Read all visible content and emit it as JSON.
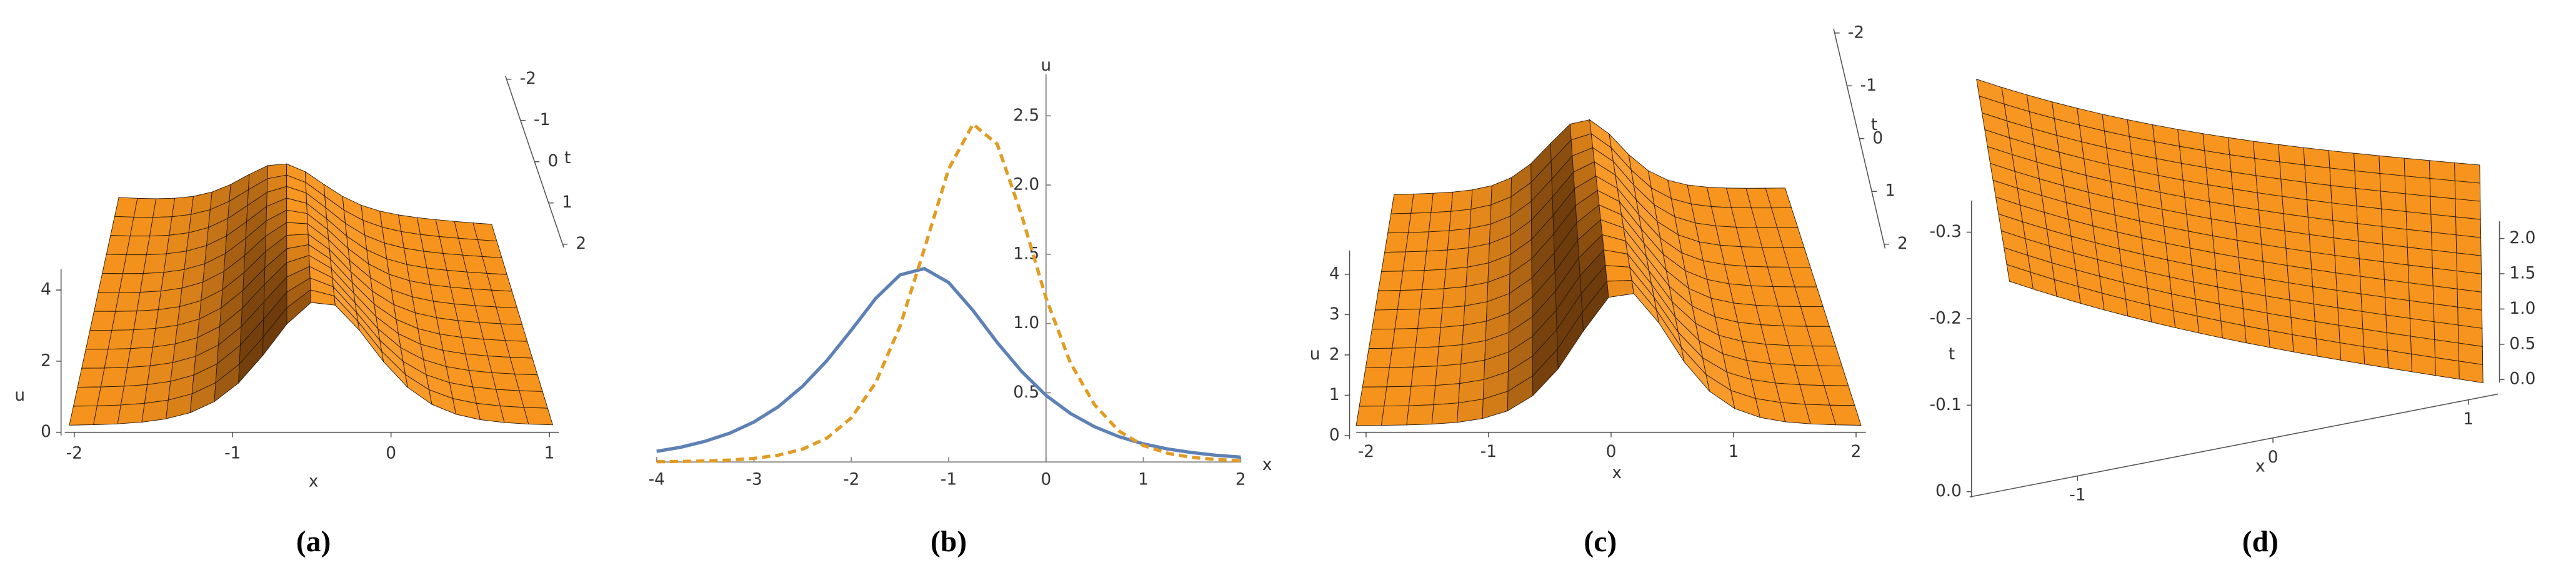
{
  "chart_data": [
    {
      "type": "surface",
      "label": "(a)",
      "xlabel": "x",
      "ylabel": "t",
      "zlabel": "u",
      "xlim": [
        -2,
        1
      ],
      "xticks": [
        -2,
        -1,
        0,
        1
      ],
      "ylim": [
        -2,
        2
      ],
      "yticks": [
        -2,
        -1,
        0,
        1,
        2
      ],
      "zlim": [
        0,
        4.5
      ],
      "zticks": [
        0,
        2,
        4
      ],
      "color": "#f7941d"
    },
    {
      "type": "line",
      "label": "(b)",
      "xlabel": "x",
      "ylabel": "u",
      "xlim": [
        -4,
        2
      ],
      "xticks": [
        -4,
        -3,
        -2,
        -1,
        0,
        1,
        2
      ],
      "ylim": [
        0,
        2.8
      ],
      "yticks": [
        0.5,
        {
          "value": 1,
          "label": "1.0"
        },
        1.5,
        {
          "value": 2,
          "label": "2.0"
        },
        2.5
      ],
      "x": [
        -4,
        -3.75,
        -3.5,
        -3.25,
        -3,
        -2.75,
        -2.5,
        -2.25,
        -2,
        -1.75,
        -1.5,
        -1.25,
        -1,
        -0.75,
        -0.5,
        -0.25,
        0,
        0.25,
        0.5,
        0.75,
        1,
        1.25,
        1.5,
        1.75,
        2
      ],
      "series": [
        {
          "color": "#5e81b5",
          "linestyle": "solid",
          "values": [
            0.077,
            0.107,
            0.15,
            0.208,
            0.289,
            0.399,
            0.547,
            0.733,
            0.952,
            1.181,
            1.351,
            1.397,
            1.296,
            1.094,
            0.862,
            0.654,
            0.481,
            0.351,
            0.254,
            0.183,
            0.131,
            0.094,
            0.068,
            0.048,
            0.035
          ]
        },
        {
          "color": "#e19c24",
          "linestyle": "dashed",
          "values": [
            0.002,
            0.004,
            0.007,
            0.014,
            0.026,
            0.049,
            0.093,
            0.173,
            0.319,
            0.572,
            0.98,
            1.538,
            2.116,
            2.44,
            2.294,
            1.781,
            1.185,
            0.717,
            0.412,
            0.223,
            0.119,
            0.063,
            0.033,
            0.018,
            0.009
          ]
        }
      ]
    },
    {
      "type": "surface",
      "label": "(c)",
      "xlabel": "x",
      "ylabel": "t",
      "zlabel": "u",
      "xlim": [
        -2,
        2
      ],
      "xticks": [
        -2,
        -1,
        0,
        1,
        2
      ],
      "ylim": [
        -2,
        2
      ],
      "yticks": [
        -2,
        -1,
        0,
        1,
        2
      ],
      "zlim": [
        0,
        4.5
      ],
      "zticks": [
        0,
        1,
        2,
        3,
        4
      ],
      "color": "#f7941d"
    },
    {
      "type": "surface",
      "label": "(d)",
      "xlabel": "x",
      "ylabel": "t",
      "xlim": [
        -1.5,
        1.1
      ],
      "xticks": [
        -1,
        0,
        1
      ],
      "ylim": [
        0,
        -0.33
      ],
      "yticks": [
        {
          "value": 0,
          "label": "0.0"
        },
        -0.1,
        -0.2,
        -0.3
      ],
      "zlim": [
        0,
        2.2
      ],
      "zticks": [
        {
          "value": 0,
          "label": "0.0"
        },
        0.5,
        {
          "value": 1,
          "label": "1.0"
        },
        1.5,
        {
          "value": 2,
          "label": "2.0"
        }
      ],
      "color": "#f7941d"
    }
  ]
}
